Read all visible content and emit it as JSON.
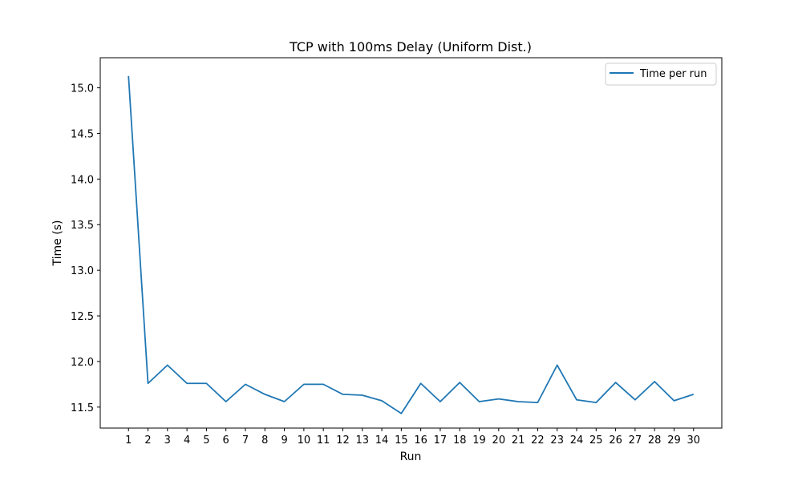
{
  "chart_data": {
    "type": "line",
    "title": "TCP with 100ms Delay (Uniform Dist.)",
    "xlabel": "Run",
    "ylabel": "Time (s)",
    "x": [
      1,
      2,
      3,
      4,
      5,
      6,
      7,
      8,
      9,
      10,
      11,
      12,
      13,
      14,
      15,
      16,
      17,
      18,
      19,
      20,
      21,
      22,
      23,
      24,
      25,
      26,
      27,
      28,
      29,
      30
    ],
    "xlim": [
      -0.45,
      31.45
    ],
    "ylim": [
      11.27,
      15.33
    ],
    "x_ticks": [
      1,
      2,
      3,
      4,
      5,
      6,
      7,
      8,
      9,
      10,
      11,
      12,
      13,
      14,
      15,
      16,
      17,
      18,
      19,
      20,
      21,
      22,
      23,
      24,
      25,
      26,
      27,
      28,
      29,
      30
    ],
    "y_ticks": [
      "11.5",
      "12.0",
      "12.5",
      "13.0",
      "13.5",
      "14.0",
      "14.5",
      "15.0"
    ],
    "series": [
      {
        "name": "Time per run",
        "color": "#1f77b4",
        "values": [
          15.13,
          11.76,
          11.96,
          11.76,
          11.76,
          11.56,
          11.75,
          11.64,
          11.56,
          11.75,
          11.75,
          11.64,
          11.63,
          11.57,
          11.43,
          11.76,
          11.56,
          11.77,
          11.56,
          11.59,
          11.56,
          11.55,
          11.96,
          11.58,
          11.55,
          11.77,
          11.58,
          11.78,
          11.57,
          11.64
        ]
      }
    ],
    "legend": {
      "position": "top-right"
    },
    "grid": false
  }
}
